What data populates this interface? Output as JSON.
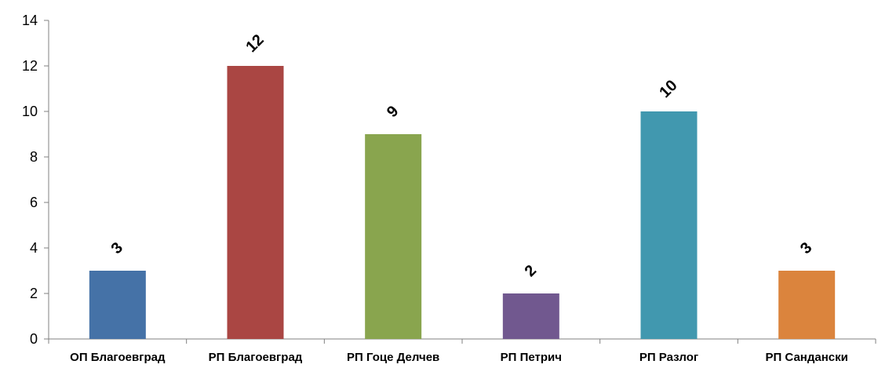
{
  "chart_data": {
    "type": "bar",
    "categories": [
      "ОП Благоевград",
      "РП Благоевград",
      "РП Гоце Делчев",
      "РП Петрич",
      "РП Разлог",
      "РП Сандански"
    ],
    "values": [
      3,
      12,
      9,
      2,
      10,
      3
    ],
    "colors": [
      "#4572A7",
      "#AA4643",
      "#89A54E",
      "#71588F",
      "#4198AF",
      "#DB843D"
    ],
    "ylim": [
      0,
      14
    ],
    "yticks": [
      0,
      2,
      4,
      6,
      8,
      10,
      12,
      14
    ],
    "data_labels": [
      "3",
      "12",
      "9",
      "2",
      "10",
      "3"
    ],
    "title": "",
    "xlabel": "",
    "ylabel": "",
    "grid": false,
    "legend": "none"
  }
}
